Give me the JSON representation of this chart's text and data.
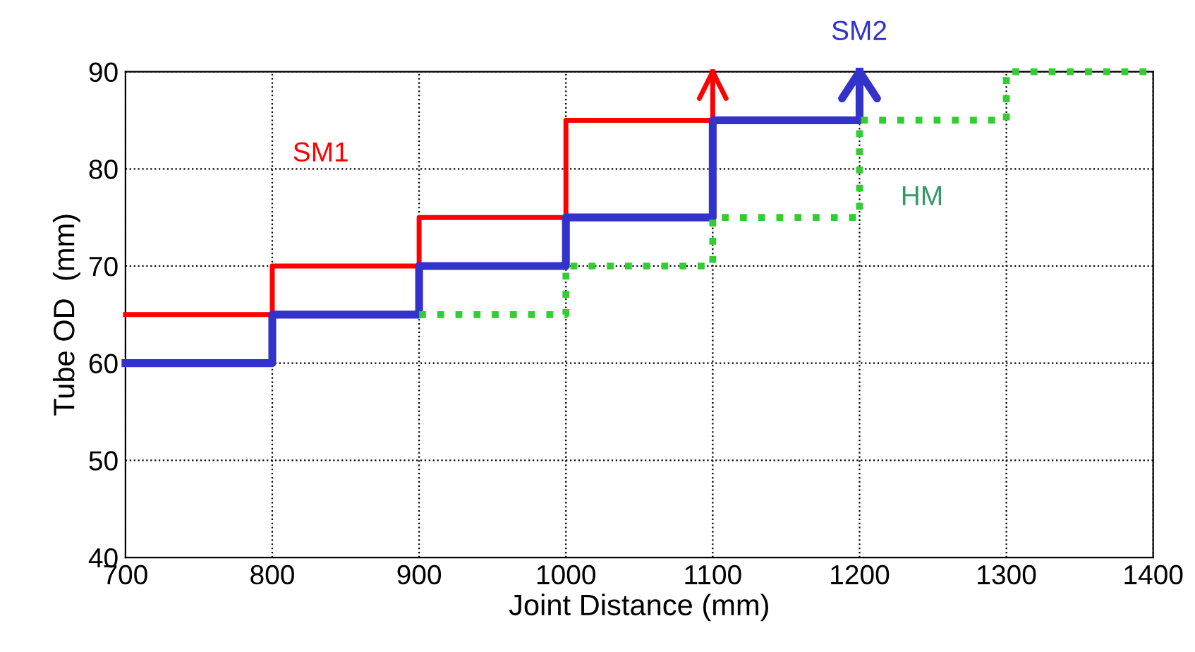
{
  "chart_data": {
    "type": "step",
    "xlabel": "Joint Distance (mm)",
    "ylabel": "Tube OD  (mm)",
    "xlim": [
      700,
      1400
    ],
    "xticks": [
      700,
      800,
      900,
      1000,
      1100,
      1200,
      1300,
      1400
    ],
    "ylim": [
      40,
      90
    ],
    "yticks": [
      40,
      50,
      60,
      70,
      80,
      90
    ],
    "grid": true,
    "series": [
      {
        "name": "SM1",
        "color": "#ff0000",
        "line_style": "solid",
        "x": [
          700,
          800,
          900,
          1000,
          1100
        ],
        "values": [
          65,
          70,
          75,
          85,
          90
        ]
      },
      {
        "name": "SM2",
        "color": "#3333cc",
        "line_style": "solid",
        "x": [
          700,
          800,
          900,
          1000,
          1100,
          1200
        ],
        "values": [
          60,
          65,
          70,
          75,
          85,
          90
        ]
      },
      {
        "name": "HM",
        "color": "#33cc33",
        "line_style": "dotted",
        "x": [
          900,
          1000,
          1100,
          1200,
          1300,
          1400
        ],
        "values": [
          65,
          70,
          75,
          85,
          90,
          90
        ]
      }
    ]
  }
}
